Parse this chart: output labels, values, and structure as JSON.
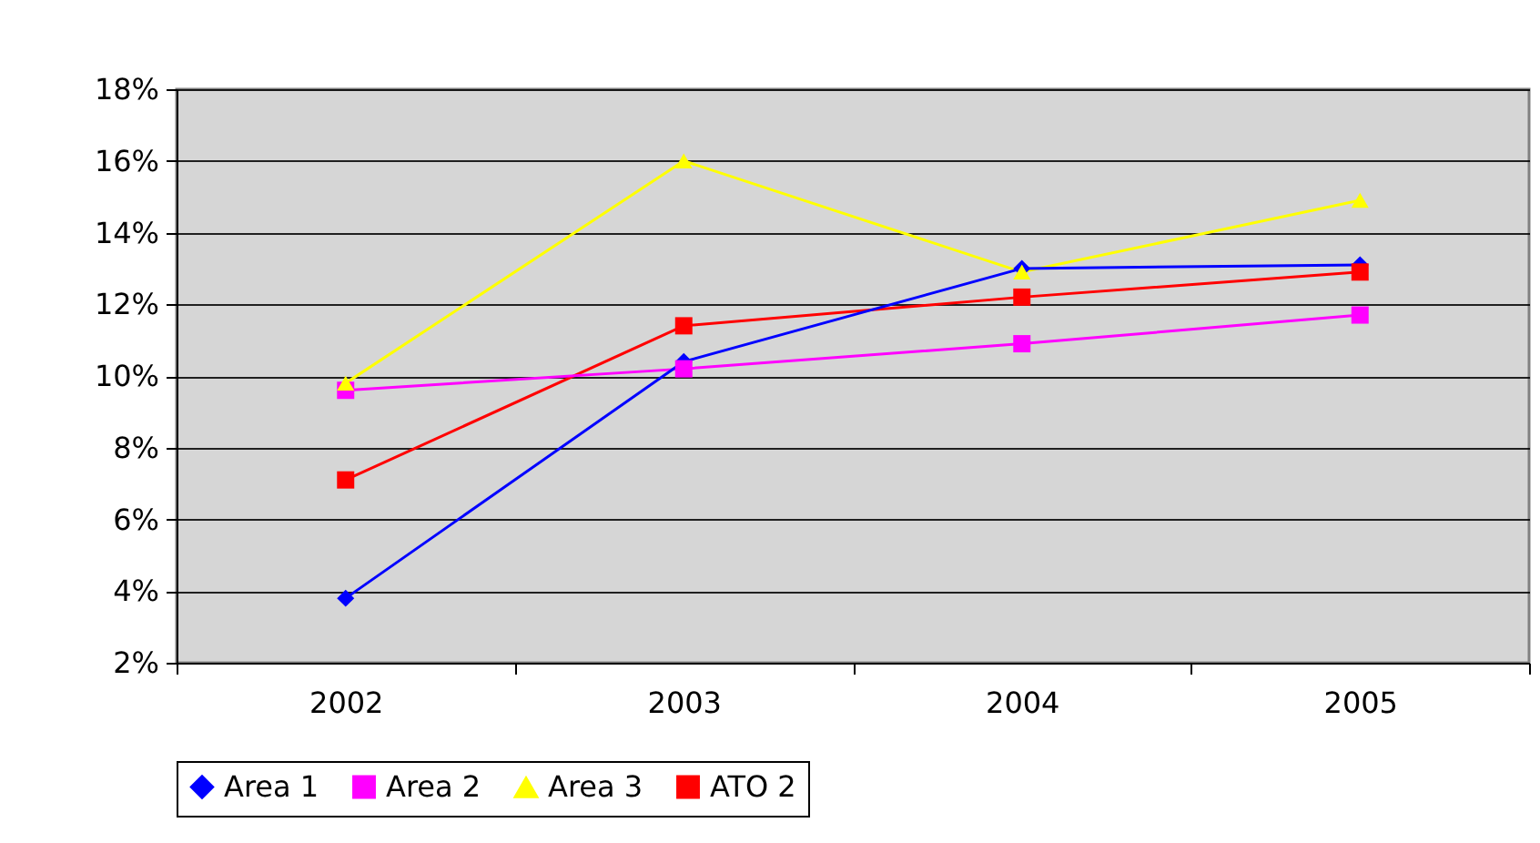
{
  "chart_data": {
    "type": "line",
    "categories": [
      "2002",
      "2003",
      "2004",
      "2005"
    ],
    "series": [
      {
        "name": "Area 1",
        "color": "#0000ff",
        "marker": "diamond",
        "values": [
          3.8,
          10.4,
          13.0,
          13.1
        ]
      },
      {
        "name": "Area 2",
        "color": "#ff00ff",
        "marker": "square",
        "values": [
          9.6,
          10.2,
          10.9,
          11.7
        ]
      },
      {
        "name": "Area 3",
        "color": "#ffff00",
        "marker": "triangle",
        "values": [
          9.8,
          16.0,
          12.9,
          14.9
        ]
      },
      {
        "name": "ATO 2",
        "color": "#ff0000",
        "marker": "square",
        "values": [
          7.1,
          11.4,
          12.2,
          12.9
        ]
      }
    ],
    "ylim": [
      2,
      18
    ],
    "yticks": [
      {
        "value": 2,
        "label": "2%"
      },
      {
        "value": 4,
        "label": "4%"
      },
      {
        "value": 6,
        "label": "6%"
      },
      {
        "value": 8,
        "label": "8%"
      },
      {
        "value": 10,
        "label": "10%"
      },
      {
        "value": 12,
        "label": "12%"
      },
      {
        "value": 14,
        "label": "14%"
      },
      {
        "value": 16,
        "label": "16%"
      },
      {
        "value": 18,
        "label": "18%"
      }
    ],
    "grid": "y",
    "legend": "bottom",
    "line_style": "solid"
  }
}
